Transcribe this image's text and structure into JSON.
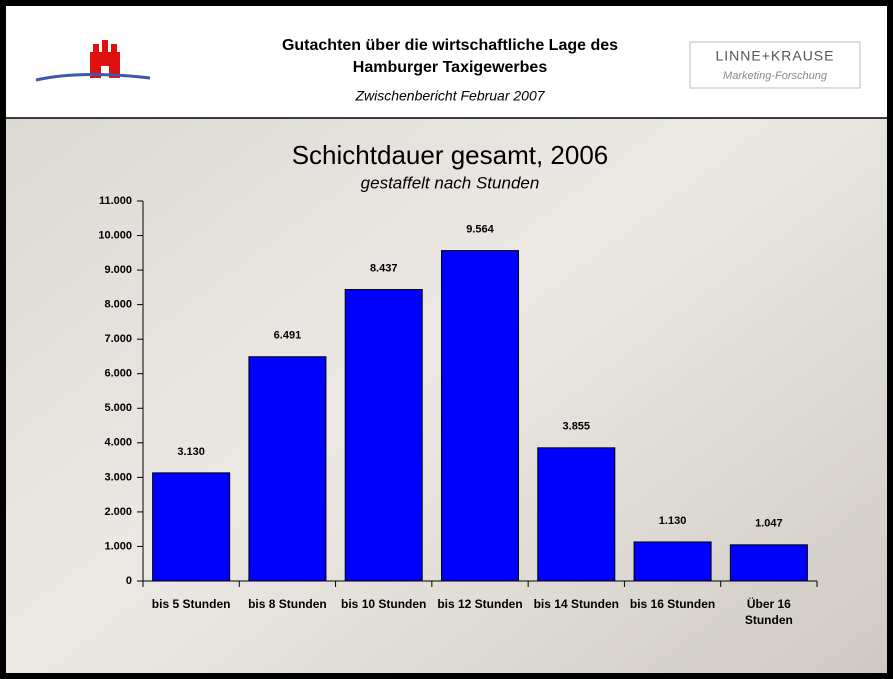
{
  "header": {
    "title_line1": "Gutachten über die wirtschaftliche Lage des",
    "title_line2": "Hamburger Taxigewerbes",
    "subtitle": "Zwischenbericht Februar 2007",
    "logo_name": "LINNE+KRAUSE",
    "logo_tagline": "Marketing-Forschung"
  },
  "chart_data": {
    "type": "bar",
    "title": "Schichtdauer gesamt, 2006",
    "subtitle": "gestaffelt nach Stunden",
    "categories": [
      "bis 5 Stunden",
      "bis 8 Stunden",
      "bis 10 Stunden",
      "bis 12 Stunden",
      "bis 14 Stunden",
      "bis 16 Stunden",
      "Über 16 Stunden"
    ],
    "values": [
      3130,
      6491,
      8437,
      9564,
      3855,
      1130,
      1047
    ],
    "value_labels": [
      "3.130",
      "6.491",
      "8.437",
      "9.564",
      "3.855",
      "1.130",
      "1.047"
    ],
    "color": "#0000ff",
    "ylim": [
      0,
      11000
    ],
    "yticks": [
      0,
      {
        "value": 1000,
        "label": "1.000"
      },
      {
        "value": 2000,
        "label": "2.000"
      },
      {
        "value": 3000,
        "label": "3.000"
      },
      {
        "value": 4000,
        "label": "4.000"
      },
      {
        "value": 5000,
        "label": "5.000"
      },
      {
        "value": 6000,
        "label": "6.000"
      },
      {
        "value": 7000,
        "label": "7.000"
      },
      {
        "value": 8000,
        "label": "8.000"
      },
      {
        "value": 9000,
        "label": "9.000"
      },
      {
        "value": 10000,
        "label": "10.000"
      },
      {
        "value": 11000,
        "label": "11.000"
      }
    ],
    "grid": false
  }
}
